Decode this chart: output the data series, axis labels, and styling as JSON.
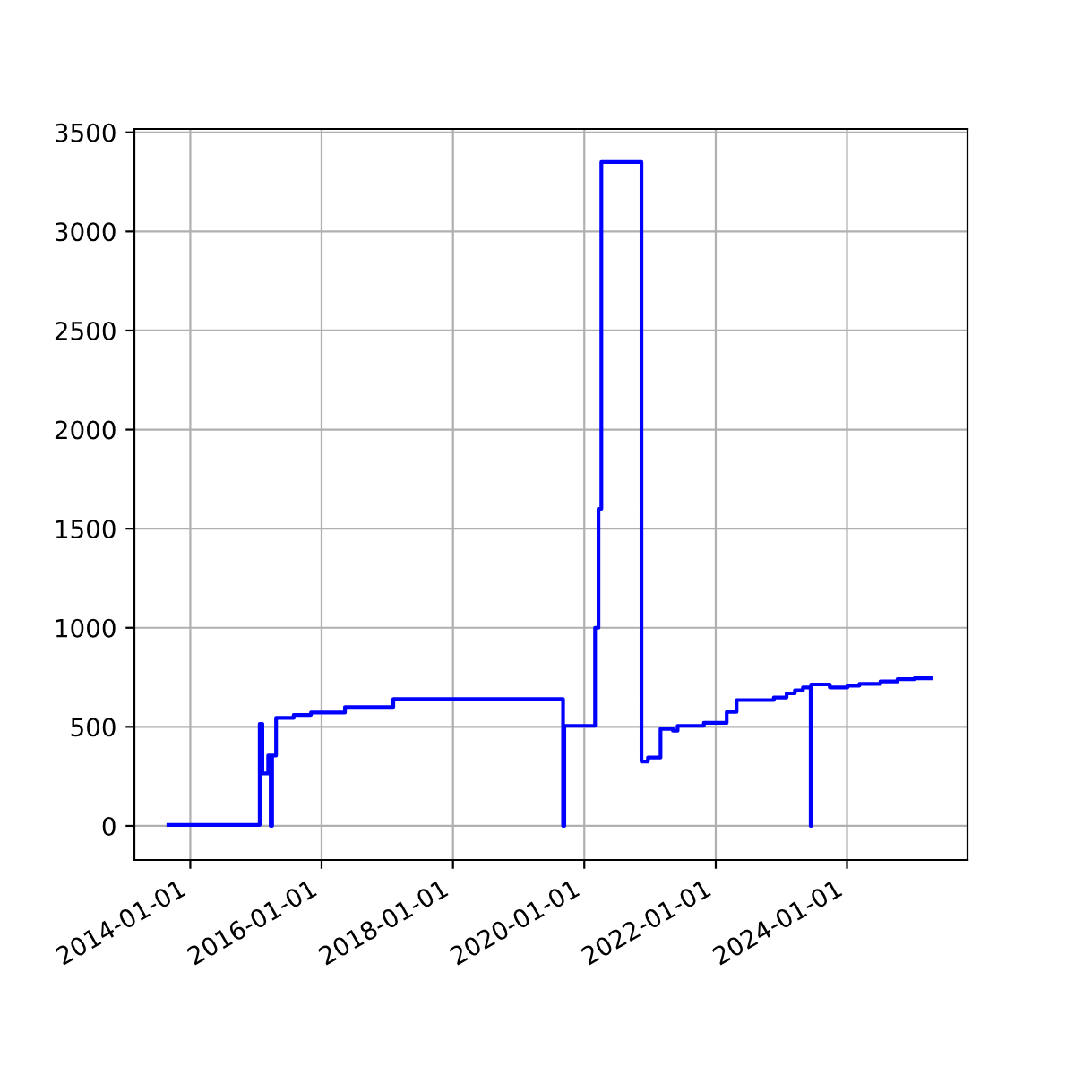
{
  "chart_data": {
    "type": "step",
    "grid": true,
    "x": [
      "2013-09-01",
      "2015-01-22",
      "2015-02-06",
      "2015-03-10",
      "2015-03-24",
      "2015-04-01",
      "2015-04-23",
      "2015-07-30",
      "2015-11-03",
      "2016-05-10",
      "2017-02-03",
      "2019-09-05",
      "2019-09-12",
      "2020-03-01",
      "2020-03-20",
      "2020-04-05",
      "2020-11-14",
      "2020-12-20",
      "2021-02-28",
      "2021-05-08",
      "2021-06-03",
      "2021-10-27",
      "2022-03-03",
      "2022-04-27",
      "2022-11-20",
      "2023-01-30",
      "2023-03-17",
      "2023-05-01",
      "2023-06-13",
      "2023-06-16",
      "2023-09-27",
      "2024-01-04",
      "2024-03-10",
      "2024-07-05",
      "2024-10-08",
      "2025-01-10",
      "2025-04-10"
    ],
    "series": [
      {
        "color": "#0000ff",
        "values": [
          5,
          515,
          265,
          355,
          0,
          355,
          545,
          560,
          572,
          600,
          640,
          0,
          505,
          1000,
          1600,
          3350,
          325,
          345,
          490,
          480,
          505,
          520,
          575,
          635,
          648,
          669,
          684,
          699,
          0,
          714,
          699,
          708,
          717,
          729,
          741,
          745,
          745
        ]
      }
    ],
    "xlim": [
      "2013-02-24",
      "2025-11-01"
    ],
    "xticks": [
      "2014-01-01",
      "2016-01-01",
      "2018-01-01",
      "2020-01-01",
      "2022-01-01",
      "2024-01-01"
    ],
    "ylim": [
      -172,
      3517
    ],
    "yticks": [
      0,
      500,
      1000,
      1500,
      2000,
      2500,
      3000,
      3500
    ]
  }
}
